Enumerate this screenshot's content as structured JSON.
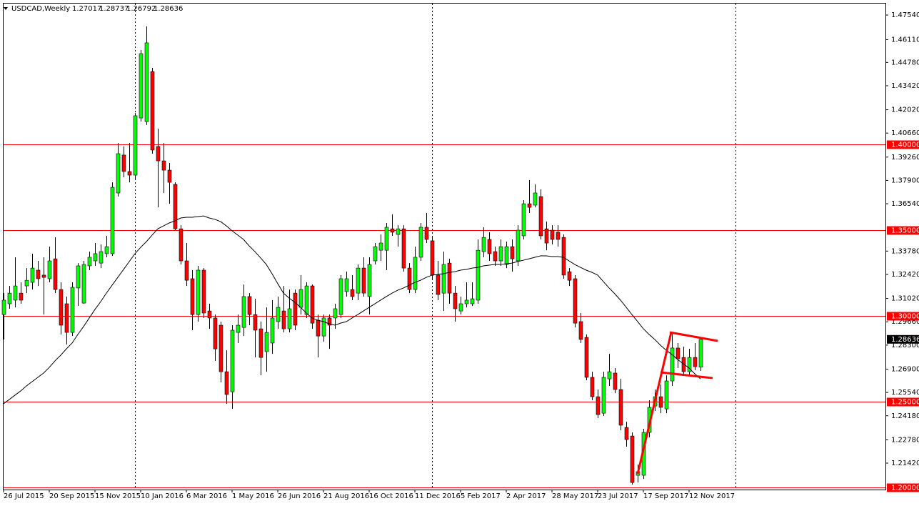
{
  "chart_data": {
    "type": "candlestick",
    "title": "USDCAD,Weekly",
    "categories": [
      "26 Jul 2015",
      null,
      null,
      null,
      null,
      null,
      null,
      null,
      "20 Sep 2015",
      null,
      null,
      null,
      null,
      null,
      null,
      null,
      "15 Nov 2015",
      null,
      null,
      null,
      null,
      null,
      null,
      null,
      "10 Jan 2016",
      null,
      null,
      null,
      null,
      null,
      null,
      null,
      "6 Mar 2016",
      null,
      null,
      null,
      null,
      null,
      null,
      null,
      "1 May 2016",
      null,
      null,
      null,
      null,
      null,
      null,
      null,
      "26 Jun 2016",
      null,
      null,
      null,
      null,
      null,
      null,
      null,
      "21 Aug 2016",
      null,
      null,
      null,
      null,
      null,
      null,
      null,
      "16 Oct 2016",
      null,
      null,
      null,
      null,
      null,
      null,
      null,
      "11 Dec 2016",
      null,
      null,
      null,
      null,
      null,
      null,
      null,
      "5 Feb 2017",
      null,
      null,
      null,
      null,
      null,
      null,
      null,
      "2 Apr 2017",
      null,
      null,
      null,
      null,
      null,
      null,
      null,
      "28 May 2017",
      null,
      null,
      null,
      null,
      null,
      null,
      null,
      "23 Jul 2017",
      null,
      null,
      null,
      null,
      null,
      null,
      null,
      "17 Sep 2017",
      null,
      null,
      null,
      null,
      null,
      null,
      null,
      "12 Nov 2017",
      null,
      null
    ],
    "open": [
      1.3008,
      1.3071,
      1.3092,
      1.3133,
      1.3175,
      1.3196,
      1.3267,
      1.3238,
      1.3217,
      1.3333,
      1.3154,
      1.3071,
      1.2904,
      1.3163,
      1.3075,
      1.3292,
      1.3321,
      1.3308,
      1.3363,
      1.3363,
      1.3717,
      1.3938,
      1.3842,
      1.3821,
      1.4154,
      1.4133,
      1.4425,
      1.3988,
      1.3904,
      1.385,
      1.3767,
      1.3508,
      1.3321,
      1.3217,
      1.3008,
      1.3267,
      1.3029,
      1.2988,
      1.2946,
      1.2675,
      1.2558,
      1.2904,
      1.2933,
      1.3113,
      1.3008,
      1.2925,
      1.2792,
      1.2842,
      1.2967,
      1.3029,
      1.2925,
      1.3133,
      1.305,
      1.3008,
      1.3175,
      1.2975,
      1.2883,
      1.2988,
      1.2988,
      1.3008,
      1.3142,
      1.3154,
      1.3133,
      1.3279,
      1.3113,
      1.3321,
      1.3383,
      1.3383,
      1.3508,
      1.3475,
      1.3508,
      1.3279,
      1.3154,
      1.3342,
      1.3517,
      1.3438,
      1.3238,
      1.3133,
      1.3308,
      1.3133,
      1.3029,
      1.3071,
      1.3071,
      1.3092,
      1.3375,
      1.3446,
      1.3375,
      1.3321,
      1.33,
      1.3404,
      1.3321,
      1.3467,
      1.3654,
      1.3646,
      1.3696,
      1.3508,
      1.35,
      1.3488,
      1.3458,
      1.3258,
      1.3217,
      1.2967,
      1.2875,
      1.2642,
      1.2529,
      1.2433,
      1.2633,
      1.2667,
      1.2571,
      1.235,
      1.23,
      1.2071,
      1.2071,
      1.2321,
      1.2475,
      1.2529,
      1.2458,
      1.2621,
      1.2813,
      1.2758,
      1.2675,
      1.2758,
      1.27017
    ],
    "high": [
      1.3133,
      1.3175,
      1.3342,
      1.3196,
      1.3279,
      1.3363,
      1.3321,
      1.3342,
      1.3404,
      1.3458,
      1.3196,
      1.3113,
      1.3196,
      1.3308,
      1.3321,
      1.3375,
      1.3425,
      1.3417,
      1.3467,
      1.3779,
      1.4008,
      1.3988,
      1.4008,
      1.4183,
      1.455,
      1.4688,
      1.4446,
      1.4092,
      1.4008,
      1.3892,
      1.3779,
      1.3529,
      1.3425,
      1.3267,
      1.3292,
      1.3279,
      1.3071,
      1.3008,
      1.2967,
      1.28,
      1.2946,
      1.3008,
      1.3183,
      1.3133,
      1.31,
      1.2967,
      1.305,
      1.3092,
      1.3113,
      1.3175,
      1.3154,
      1.3154,
      1.3238,
      1.3196,
      1.3183,
      1.3008,
      1.3008,
      1.3008,
      1.3071,
      1.3238,
      1.3258,
      1.3238,
      1.33,
      1.3342,
      1.3342,
      1.3425,
      1.3475,
      1.3542,
      1.3592,
      1.3529,
      1.3529,
      1.3308,
      1.3404,
      1.3542,
      1.36,
      1.3467,
      1.3321,
      1.3375,
      1.3333,
      1.3175,
      1.3113,
      1.3196,
      1.3196,
      1.3446,
      1.3517,
      1.3488,
      1.3404,
      1.3446,
      1.3433,
      1.3446,
      1.3529,
      1.3675,
      1.3792,
      1.3767,
      1.3738,
      1.355,
      1.3529,
      1.3529,
      1.3475,
      1.3279,
      1.3238,
      1.3017,
      1.2892,
      1.2675,
      1.2571,
      1.2675,
      1.2779,
      1.2696,
      1.2633,
      1.2383,
      1.2321,
      1.2133,
      1.2342,
      1.2508,
      1.2571,
      1.26,
      1.2654,
      1.2904,
      1.2842,
      1.2821,
      1.2808,
      1.2842,
      1.28737
    ],
    "low": [
      1.2863,
      1.3042,
      1.305,
      1.3071,
      1.3133,
      1.3154,
      1.3175,
      1.3008,
      1.3196,
      1.3133,
      1.2892,
      1.2833,
      1.2883,
      1.3058,
      1.3071,
      1.3267,
      1.3292,
      1.3279,
      1.3342,
      1.335,
      1.3696,
      1.3808,
      1.3779,
      1.38,
      1.4133,
      1.4113,
      1.3946,
      1.3633,
      1.3717,
      1.3654,
      1.35,
      1.33,
      1.3175,
      1.2917,
      1.2967,
      1.2988,
      1.2925,
      1.2738,
      1.2613,
      1.2488,
      1.2458,
      1.2842,
      1.2883,
      1.2946,
      1.2758,
      1.2654,
      1.2675,
      1.2779,
      1.2925,
      1.2904,
      1.2904,
      1.2917,
      1.3008,
      1.2988,
      1.2925,
      1.2758,
      1.285,
      1.2808,
      1.2925,
      1.2988,
      1.3113,
      1.3092,
      1.3092,
      1.3113,
      1.3008,
      1.33,
      1.3321,
      1.3267,
      1.3467,
      1.3404,
      1.3258,
      1.3133,
      1.3133,
      1.3321,
      1.3425,
      1.3217,
      1.3092,
      1.3029,
      1.3071,
      1.2967,
      1.3008,
      1.305,
      1.3058,
      1.3071,
      1.3342,
      1.3321,
      1.3292,
      1.3292,
      1.3279,
      1.3258,
      1.3292,
      1.3446,
      1.36,
      1.3633,
      1.3446,
      1.3383,
      1.3417,
      1.3404,
      1.3217,
      1.3175,
      1.2933,
      1.2842,
      1.2625,
      1.2508,
      1.2404,
      1.2417,
      1.2592,
      1.255,
      1.2333,
      1.2238,
      1.2017,
      1.2029,
      1.205,
      1.2292,
      1.2446,
      1.2433,
      1.2433,
      1.2592,
      1.2696,
      1.2654,
      1.2654,
      1.2683,
      1.26792
    ],
    "close": [
      1.3092,
      1.3133,
      1.3175,
      1.3092,
      1.3208,
      1.3279,
      1.3217,
      1.3225,
      1.3321,
      1.3154,
      1.2946,
      1.2904,
      1.3167,
      1.3292,
      1.33,
      1.3342,
      1.3363,
      1.3375,
      1.3404,
      1.375,
      1.3946,
      1.3842,
      1.3821,
      1.4167,
      1.4529,
      1.4592,
      1.3967,
      1.3904,
      1.385,
      1.3779,
      1.3508,
      1.3321,
      1.3208,
      1.3008,
      1.3267,
      1.3017,
      1.2988,
      1.2808,
      1.2675,
      1.2542,
      1.2917,
      1.2946,
      1.3113,
      1.3008,
      1.2917,
      1.2758,
      1.2904,
      1.2988,
      1.305,
      1.2925,
      1.3042,
      1.2946,
      1.3154,
      1.3175,
      1.2958,
      1.2883,
      1.2988,
      1.2946,
      1.3042,
      1.3217,
      1.3217,
      1.3113,
      1.3279,
      1.3133,
      1.33,
      1.3404,
      1.3425,
      1.3517,
      1.3488,
      1.3508,
      1.3279,
      1.3154,
      1.3342,
      1.3517,
      1.3446,
      1.3238,
      1.3125,
      1.33,
      1.3133,
      1.3042,
      1.3071,
      1.3092,
      1.31,
      1.3383,
      1.3458,
      1.3363,
      1.3321,
      1.3404,
      1.3404,
      1.3333,
      1.35,
      1.3654,
      1.3633,
      1.3717,
      1.3467,
      1.3425,
      1.3446,
      1.3446,
      1.3238,
      1.3208,
      1.2958,
      1.2863,
      1.2642,
      1.2529,
      1.2425,
      1.2642,
      1.2675,
      1.2571,
      1.2363,
      1.2279,
      1.2029,
      1.2092,
      1.2321,
      1.2467,
      1.2529,
      1.2467,
      1.2621,
      1.2813,
      1.275,
      1.2675,
      1.2758,
      1.2704,
      1.28636
    ],
    "ma": {
      "color": "#000000",
      "values": [
        1.2488,
        1.2513,
        1.2538,
        1.2563,
        1.2592,
        1.2617,
        1.2642,
        1.2667,
        1.27,
        1.2738,
        1.2771,
        1.2808,
        1.2842,
        1.2892,
        1.2938,
        1.2988,
        1.3038,
        1.3083,
        1.3133,
        1.3179,
        1.3225,
        1.3271,
        1.3317,
        1.3363,
        1.34,
        1.3433,
        1.3471,
        1.3508,
        1.3525,
        1.3542,
        1.3554,
        1.3571,
        1.3575,
        1.3575,
        1.3579,
        1.3583,
        1.3571,
        1.3563,
        1.355,
        1.3525,
        1.3496,
        1.3471,
        1.3446,
        1.3408,
        1.3375,
        1.3338,
        1.33,
        1.3246,
        1.3188,
        1.3133,
        1.3104,
        1.3079,
        1.305,
        1.3017,
        1.2988,
        1.2975,
        1.2967,
        1.2954,
        1.2946,
        1.2958,
        1.2967,
        1.2988,
        1.3008,
        1.3029,
        1.305,
        1.3071,
        1.3092,
        1.3113,
        1.3133,
        1.315,
        1.3163,
        1.3179,
        1.3196,
        1.3208,
        1.3225,
        1.3238,
        1.3242,
        1.3246,
        1.3254,
        1.3258,
        1.3267,
        1.3271,
        1.3279,
        1.3283,
        1.3292,
        1.3296,
        1.33,
        1.33,
        1.3304,
        1.3308,
        1.3317,
        1.3325,
        1.3333,
        1.3342,
        1.335,
        1.335,
        1.3346,
        1.3346,
        1.3342,
        1.3321,
        1.33,
        1.3283,
        1.3267,
        1.3254,
        1.3238,
        1.32,
        1.3163,
        1.3129,
        1.3092,
        1.305,
        1.3008,
        1.2967,
        1.2925,
        1.2892,
        1.2863,
        1.2829,
        1.28,
        1.2775,
        1.2746,
        1.2721,
        1.2696,
        1.2663,
        1.2633
      ]
    },
    "up_color": "#00ff00",
    "down_color": "#ff0000",
    "wick_color": "#000000",
    "ylim": [
      1.1992,
      1.4821
    ],
    "yticks": [
      {
        "value": 1.4754,
        "label": "1.47540"
      },
      {
        "value": 1.4611,
        "label": "1.46110"
      },
      {
        "value": 1.4478,
        "label": "1.44780"
      },
      {
        "value": 1.4342,
        "label": "1.43420"
      },
      {
        "value": 1.4202,
        "label": "1.42020"
      },
      {
        "value": 1.4066,
        "label": "1.40660"
      },
      {
        "value": 1.3926,
        "label": "1.39260"
      },
      {
        "value": 1.379,
        "label": "1.37900"
      },
      {
        "value": 1.3654,
        "label": "1.36540"
      },
      {
        "value": 1.3378,
        "label": "1.33780"
      },
      {
        "value": 1.3242,
        "label": "1.32420"
      },
      {
        "value": 1.3102,
        "label": "1.31020"
      },
      {
        "value": 1.2966,
        "label": "1.29660"
      },
      {
        "value": 1.283,
        "label": "1.28300"
      },
      {
        "value": 1.269,
        "label": "1.26900"
      },
      {
        "value": 1.2554,
        "label": "1.25540"
      },
      {
        "value": 1.2418,
        "label": "1.24180"
      },
      {
        "value": 1.2278,
        "label": "1.22780"
      },
      {
        "value": 1.2142,
        "label": "1.21420"
      }
    ],
    "levels": [
      {
        "value": 1.4,
        "label": "1.40000"
      },
      {
        "value": 1.35,
        "label": "1.35000"
      },
      {
        "value": 1.3,
        "label": "1.30000"
      },
      {
        "value": 1.25,
        "label": "1.25000"
      },
      {
        "value": 1.2,
        "label": "1.20000"
      }
    ],
    "level_color": "#ff0000"
  }
}
